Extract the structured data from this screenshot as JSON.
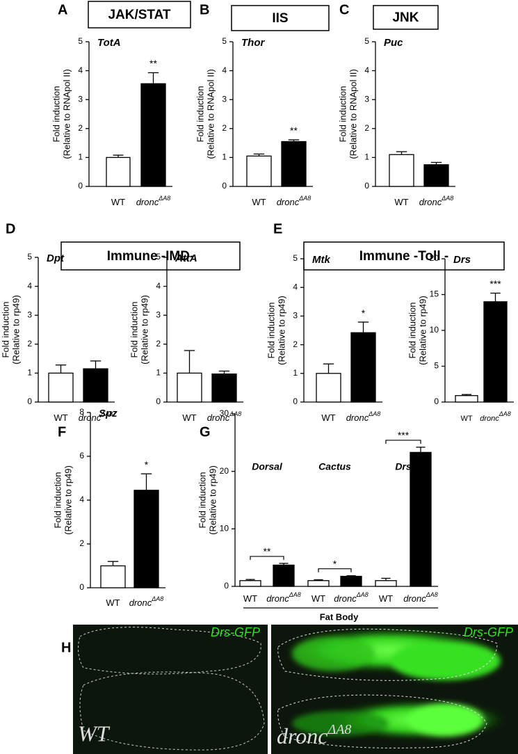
{
  "panels": [
    {
      "letter": "A",
      "box": "JAK/STAT"
    },
    {
      "letter": "B",
      "box": "IIS"
    },
    {
      "letter": "C",
      "box": "JNK"
    },
    {
      "letter": "D",
      "box": "Immune -IMD-"
    },
    {
      "letter": "E",
      "box": "Immune -Toll -"
    },
    {
      "letter": "F"
    },
    {
      "letter": "G"
    },
    {
      "letter": "H"
    }
  ],
  "chart_data": [
    {
      "type": "bar",
      "title": "TotA",
      "ylabel": [
        "Fold induction",
        "(Relative to RNApol II)"
      ],
      "categories": [
        "WT",
        "dronc"
      ],
      "category_superscripts": [
        null,
        "ΔA8"
      ],
      "values": [
        1.0,
        3.55
      ],
      "errors": [
        0.08,
        0.38
      ],
      "colors": [
        "#ffffff",
        "#000000"
      ],
      "ylim": [
        0,
        5
      ],
      "yticks": [
        0,
        1,
        2,
        3,
        4,
        5
      ],
      "significance": [
        "**"
      ]
    },
    {
      "type": "bar",
      "title": "Thor",
      "ylabel": [
        "Fold induction",
        "(Relative to RNApol II)"
      ],
      "categories": [
        "WT",
        "dronc"
      ],
      "category_superscripts": [
        null,
        "ΔA8"
      ],
      "values": [
        1.05,
        1.55
      ],
      "errors": [
        0.07,
        0.06
      ],
      "colors": [
        "#ffffff",
        "#000000"
      ],
      "ylim": [
        0,
        5
      ],
      "yticks": [
        0,
        1,
        2,
        3,
        4,
        5
      ],
      "significance": [
        "**"
      ]
    },
    {
      "type": "bar",
      "title": "Puc",
      "ylabel": [
        "Fold induction",
        "(Relative to RNApol II)"
      ],
      "categories": [
        "WT",
        "dronc"
      ],
      "category_superscripts": [
        null,
        "ΔA8"
      ],
      "values": [
        1.1,
        0.75
      ],
      "errors": [
        0.1,
        0.08
      ],
      "colors": [
        "#ffffff",
        "#000000"
      ],
      "ylim": [
        0,
        5
      ],
      "yticks": [
        0,
        1,
        2,
        3,
        4,
        5
      ],
      "significance": [
        null
      ]
    },
    {
      "type": "bar",
      "title": "Dpt",
      "ylabel": [
        "Fold induction",
        "(Relative to rp49)"
      ],
      "categories": [
        "WT",
        "dronc"
      ],
      "category_superscripts": [
        null,
        "ΔA8"
      ],
      "values": [
        1.0,
        1.15
      ],
      "errors": [
        0.28,
        0.27
      ],
      "colors": [
        "#ffffff",
        "#000000"
      ],
      "ylim": [
        0,
        5
      ],
      "yticks": [
        0,
        1,
        2,
        3,
        4,
        5
      ],
      "significance": [
        null
      ]
    },
    {
      "type": "bar",
      "title": "AttA",
      "ylabel": [
        "Fold induction",
        "(Relative to rp49)"
      ],
      "categories": [
        "WT",
        "dronc"
      ],
      "category_superscripts": [
        null,
        "ΔA8"
      ],
      "values": [
        1.0,
        0.97
      ],
      "errors": [
        0.78,
        0.1
      ],
      "colors": [
        "#ffffff",
        "#000000"
      ],
      "ylim": [
        0,
        5
      ],
      "yticks": [
        0,
        1,
        2,
        3,
        4,
        5
      ],
      "significance": [
        null
      ]
    },
    {
      "type": "bar",
      "title": "Mtk",
      "ylabel": [
        "Fold induction",
        "(Relative to rp49)"
      ],
      "categories": [
        "WT",
        "dronc"
      ],
      "category_superscripts": [
        null,
        "ΔA8"
      ],
      "values": [
        1.0,
        2.42
      ],
      "errors": [
        0.33,
        0.37
      ],
      "colors": [
        "#ffffff",
        "#000000"
      ],
      "ylim": [
        0,
        5
      ],
      "yticks": [
        0,
        1,
        2,
        3,
        4,
        5
      ],
      "significance": [
        "*"
      ]
    },
    {
      "type": "bar",
      "title": "Drs",
      "ylabel": [
        "Fold induction",
        "(Relative to rp49)"
      ],
      "categories": [
        "WT",
        "dronc"
      ],
      "category_superscripts": [
        null,
        "ΔA8"
      ],
      "values": [
        0.9,
        14.0
      ],
      "errors": [
        0.15,
        1.2
      ],
      "colors": [
        "#ffffff",
        "#000000"
      ],
      "ylim": [
        0,
        20
      ],
      "yticks": [
        0,
        5,
        10,
        15,
        20
      ],
      "significance": [
        "***"
      ]
    },
    {
      "type": "bar",
      "title": "Spz",
      "ylabel": [
        "Fold induction",
        "(Relative to rp49)"
      ],
      "categories": [
        "WT",
        "dronc"
      ],
      "category_superscripts": [
        null,
        "ΔA8"
      ],
      "values": [
        1.0,
        4.45
      ],
      "errors": [
        0.2,
        0.75
      ],
      "colors": [
        "#ffffff",
        "#000000"
      ],
      "ylim": [
        0,
        8
      ],
      "yticks": [
        0,
        2,
        4,
        6,
        8
      ],
      "significance": [
        "*"
      ]
    },
    {
      "type": "bar",
      "ylabel": [
        "Fold induction",
        "(Relative to rp49)"
      ],
      "group_labels": [
        "Dorsal",
        "Cactus",
        "Drs"
      ],
      "categories": [
        "WT",
        "dronc",
        "WT",
        "dronc",
        "WT",
        "dronc"
      ],
      "category_superscripts": [
        null,
        "ΔA8",
        null,
        "ΔA8",
        null,
        "ΔA8"
      ],
      "values": [
        1.0,
        3.7,
        1.0,
        1.75,
        1.0,
        23.3
      ],
      "errors": [
        0.2,
        0.3,
        0.15,
        0.1,
        0.4,
        0.9
      ],
      "colors": [
        "#ffffff",
        "#000000",
        "#ffffff",
        "#000000",
        "#ffffff",
        "#000000"
      ],
      "ylim": [
        0,
        30
      ],
      "yticks": [
        0,
        10,
        20,
        30
      ],
      "significance": [
        "**",
        "*",
        "***"
      ],
      "brackets": true,
      "xlabel": "Fat Body"
    }
  ],
  "image_panel": {
    "left": {
      "marker": "Drs-GFP",
      "genotype": "WT"
    },
    "right": {
      "marker": "Drs-GFP",
      "genotype": "dronc",
      "genotype_superscript": "ΔA8"
    }
  }
}
